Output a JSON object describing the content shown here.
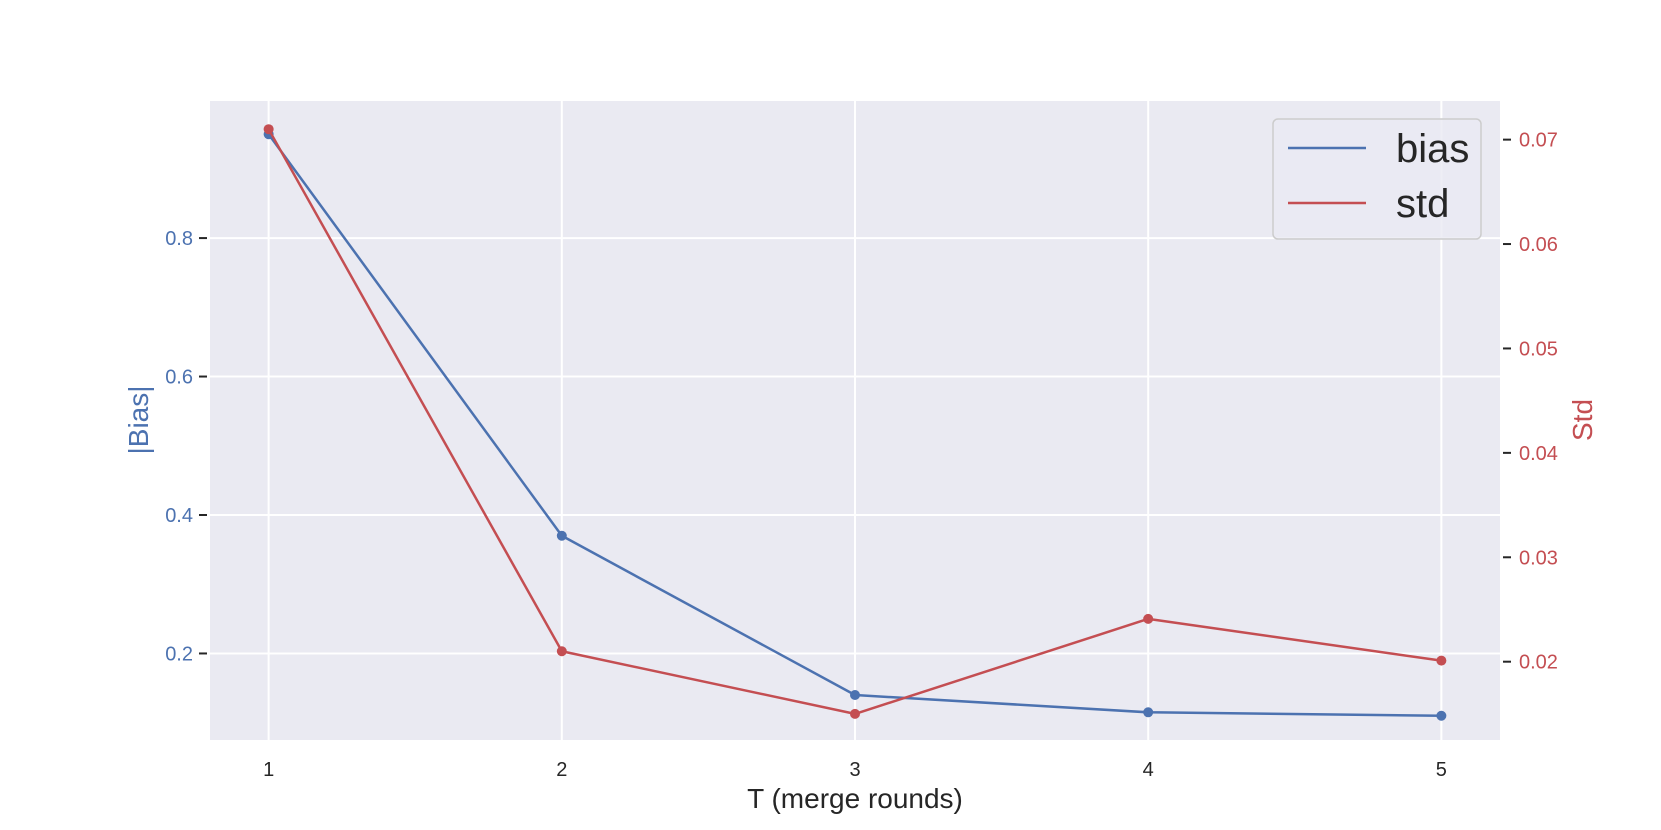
{
  "chart_data": {
    "type": "line",
    "xlabel": "T (merge rounds)",
    "ylabel": "|Bias|",
    "y2label": "Std",
    "x": [
      1,
      2,
      3,
      4,
      5
    ],
    "xticks": [
      "1",
      "2",
      "3",
      "4",
      "5"
    ],
    "xlim": [
      0.8,
      5.2
    ],
    "ylim": [
      0.075,
      0.998
    ],
    "y2lim": [
      0.0125,
      0.0737
    ],
    "yticks": [
      "0.2",
      "0.4",
      "0.6",
      "0.8"
    ],
    "y2ticks": [
      "0.02",
      "0.03",
      "0.04",
      "0.05",
      "0.06",
      "0.07"
    ],
    "series": [
      {
        "name": "bias",
        "axis": "left",
        "color": "#4c72b0",
        "values": [
          0.95,
          0.37,
          0.14,
          0.115,
          0.11
        ]
      },
      {
        "name": "std",
        "axis": "right",
        "color": "#c44e52",
        "values": [
          0.071,
          0.021,
          0.015,
          0.0241,
          0.0201
        ]
      }
    ],
    "grid": true,
    "legend_position": "top-right",
    "colors": {
      "plot_background": "#eaeaf2",
      "grid": "#ffffff",
      "left_axis": "#4c72b0",
      "right_axis": "#c44e52",
      "text": "#262626"
    }
  }
}
